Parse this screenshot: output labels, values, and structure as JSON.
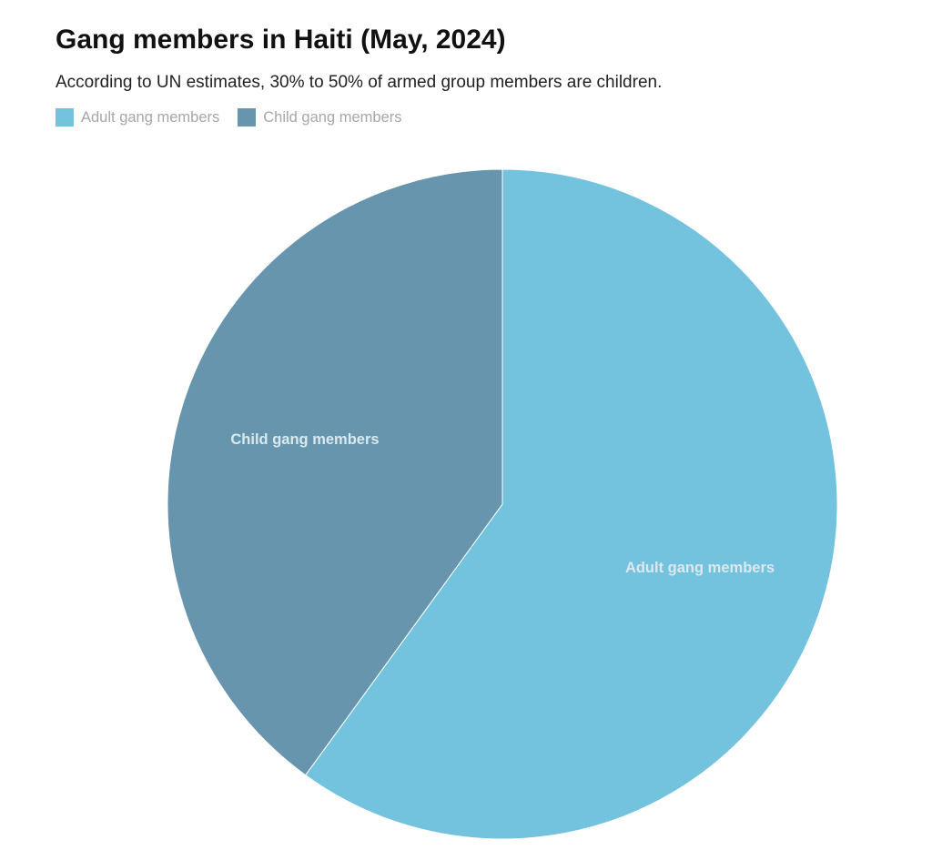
{
  "chart_data": {
    "type": "pie",
    "title": "Gang members in Haiti (May, 2024)",
    "subtitle": "According to UN estimates, 30% to 50% of armed group members are children.",
    "legend_position": "top-left",
    "slices": [
      {
        "label": "Adult gang members",
        "value": 60,
        "color": "#73c3de"
      },
      {
        "label": "Child gang members",
        "value": 40,
        "color": "#6795ad"
      }
    ]
  }
}
